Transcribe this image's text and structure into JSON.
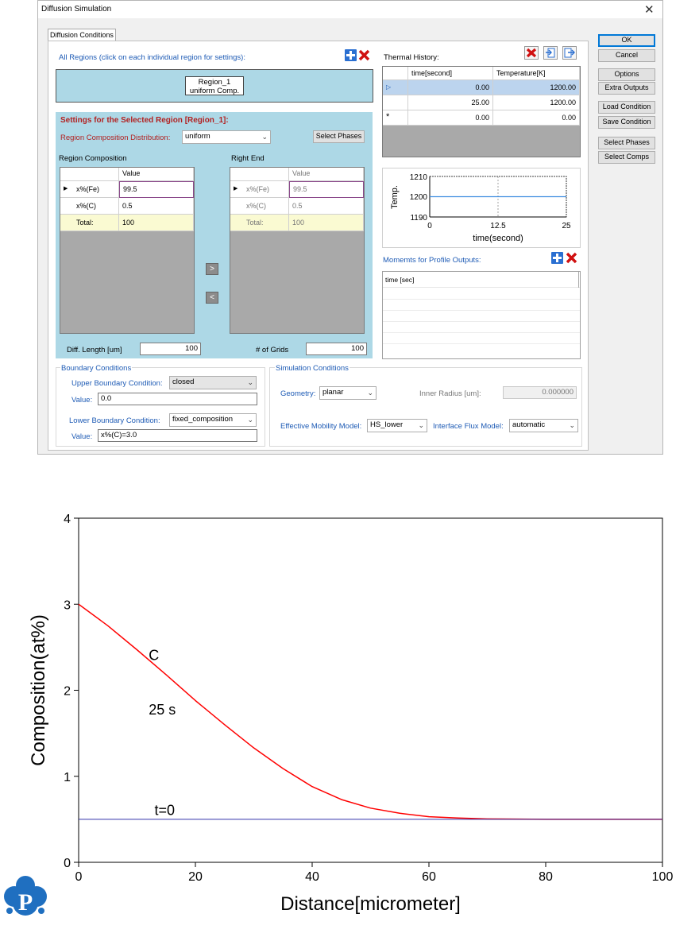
{
  "window": {
    "title": "Diffusion Simulation",
    "close_icon": "close-icon"
  },
  "tab": {
    "label": "Diffusion Conditions"
  },
  "regions": {
    "header": "All Regions (click on each individual region for settings):",
    "region_name": "Region_1",
    "region_desc": "uniform Comp."
  },
  "selected": {
    "title": "Settings for the Selected Region [Region_1]:",
    "distribution_label": "Region Composition Distribution:",
    "distribution_value": "uniform",
    "select_phases": "Select Phases",
    "composition_header": "Region Composition",
    "right_end_header": "Right End",
    "value_col": "Value",
    "rows": [
      {
        "name": "x%(Fe)",
        "value": "99.5"
      },
      {
        "name": "x%(C)",
        "value": "0.5"
      },
      {
        "name": "Total:",
        "value": "100"
      }
    ],
    "right_rows": [
      {
        "name": "x%(Fe)",
        "value": "99.5"
      },
      {
        "name": "x%(C)",
        "value": "0.5"
      },
      {
        "name": "Total:",
        "value": "100"
      }
    ],
    "diff_length_label": "Diff. Length [um]",
    "diff_length_value": "100",
    "grids_label": "# of Grids",
    "grids_value": "100"
  },
  "thermal": {
    "header": "Thermal History:",
    "col_time": "time[second]",
    "col_temp": "Temperature[K]",
    "rows": [
      {
        "time": "0.00",
        "temp": "1200.00"
      },
      {
        "time": "25.00",
        "temp": "1200.00"
      },
      {
        "time": "0.00",
        "temp": "0.00"
      }
    ],
    "chart": {
      "ylabel": "Temp.",
      "xlabel": "time(second)",
      "yticks": [
        "1210",
        "1200",
        "1190"
      ],
      "xticks": [
        "0",
        "12.5",
        "25"
      ]
    }
  },
  "moments": {
    "header": "Momemts for Profile Outputs:",
    "col": "time [sec]"
  },
  "boundary": {
    "header": "Boundary Conditions",
    "upper_label": "Upper Boundary Condition:",
    "upper_value": "closed",
    "value_label": "Value:",
    "upper_val": "0.0",
    "lower_label": "Lower Boundary Condition:",
    "lower_value": "fixed_composition",
    "lower_val": "x%(C)=3.0"
  },
  "simulation": {
    "header": "Simulation Conditions",
    "geometry_label": "Geometry:",
    "geometry_value": "planar",
    "inner_radius_label": "Inner Radius [um]:",
    "inner_radius_value": "0.000000",
    "mobility_label": "Effective Mobility Model:",
    "mobility_value": "HS_lower",
    "flux_label": "Interface Flux Model:",
    "flux_value": "automatic"
  },
  "side_buttons": {
    "ok": "OK",
    "cancel": "Cancel",
    "options": "Options",
    "extra": "Extra Outputs",
    "load": "Load Condition",
    "save": "Save Condition",
    "phases": "Select Phases",
    "comps": "Select Comps"
  },
  "chart_data": {
    "type": "line",
    "xlabel": "Distance[micrometer]",
    "ylabel": "Composition(at%)",
    "xlim": [
      0,
      100
    ],
    "ylim": [
      0,
      4
    ],
    "xticks": [
      "0",
      "20",
      "40",
      "60",
      "80",
      "100"
    ],
    "yticks": [
      "0",
      "1",
      "2",
      "3",
      "4"
    ],
    "annotations": [
      "C",
      "25 s",
      "t=0"
    ],
    "series": [
      {
        "color": "#ff0000",
        "x": [
          0,
          5,
          10,
          15,
          20,
          25,
          30,
          35,
          40,
          45,
          50,
          55,
          60,
          65,
          70,
          80,
          90,
          100
        ],
        "y": [
          3.0,
          2.75,
          2.47,
          2.18,
          1.88,
          1.6,
          1.33,
          1.09,
          0.88,
          0.73,
          0.63,
          0.57,
          0.53,
          0.515,
          0.505,
          0.5,
          0.5,
          0.5
        ]
      },
      {
        "color": "#3333aa",
        "x": [
          0,
          100
        ],
        "y": [
          0.5,
          0.5
        ]
      }
    ],
    "grid": false,
    "logo_icon": "p-cloud-logo"
  }
}
